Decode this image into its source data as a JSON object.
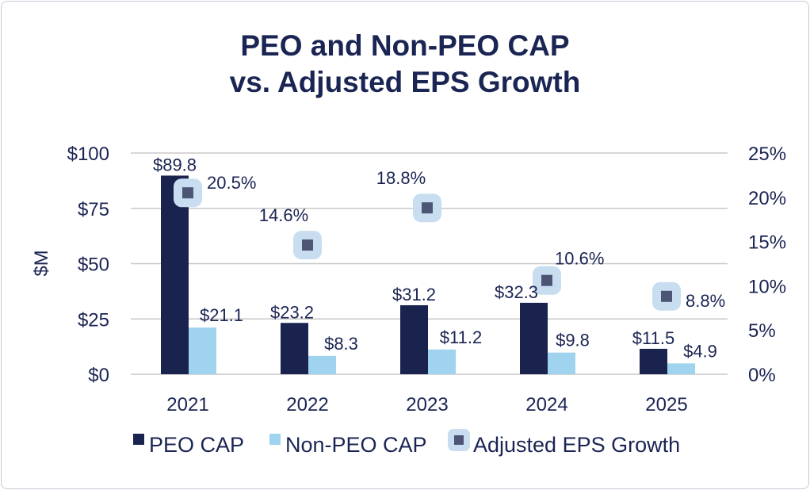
{
  "colors": {
    "peo": "#19234d",
    "non_peo": "#9fd3ee",
    "marker": "#4d5575",
    "marker_halo": "#c8def0",
    "grid": "#c8c8c8",
    "text": "#1b2553"
  },
  "chart_data": {
    "type": "bar",
    "title": "PEO and Non-PEO CAP vs. Adjusted EPS Growth",
    "title_lines": [
      "PEO and Non-PEO CAP",
      "vs. Adjusted EPS Growth"
    ],
    "categories": [
      "2021",
      "2022",
      "2023",
      "2024",
      "2025"
    ],
    "ylabel": "$M",
    "ylim": [
      0,
      100
    ],
    "y_ticks": [
      0,
      25,
      50,
      75,
      100
    ],
    "y_tick_labels": [
      "$0",
      "$25",
      "$50",
      "$75",
      "$100"
    ],
    "y2lim": [
      0,
      25
    ],
    "y2_ticks": [
      0,
      5,
      10,
      15,
      20,
      25
    ],
    "y2_tick_labels": [
      "0%",
      "5%",
      "10%",
      "15%",
      "20%",
      "25%"
    ],
    "grid": true,
    "legend_position": "bottom",
    "series": [
      {
        "name": "PEO CAP",
        "kind": "bar",
        "axis": "left",
        "values": [
          89.8,
          23.2,
          31.2,
          32.3,
          11.5
        ],
        "labels": [
          "$89.8",
          "$23.2",
          "$31.2",
          "$32.3",
          "$11.5"
        ]
      },
      {
        "name": "Non-PEO CAP",
        "kind": "bar",
        "axis": "left",
        "values": [
          21.1,
          8.3,
          11.2,
          9.8,
          4.9
        ],
        "labels": [
          "$21.1",
          "$8.3",
          "$11.2",
          "$9.8",
          "$4.9"
        ]
      },
      {
        "name": "Adjusted EPS Growth",
        "kind": "marker",
        "axis": "right",
        "values": [
          20.5,
          14.6,
          18.8,
          10.6,
          8.8
        ],
        "labels": [
          "20.5%",
          "14.6%",
          "18.8%",
          "10.6%",
          "8.8%"
        ]
      }
    ]
  }
}
